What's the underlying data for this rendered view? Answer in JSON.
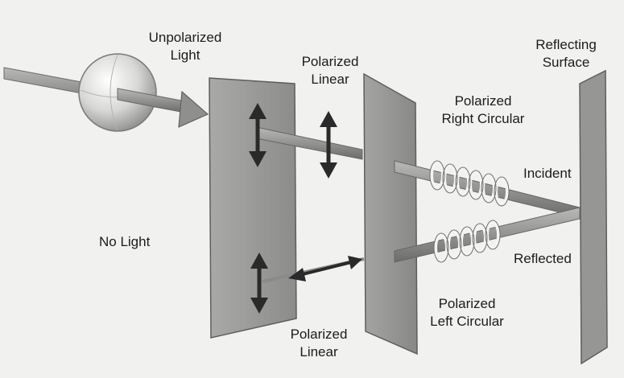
{
  "figure": {
    "subject": "Polarization of light",
    "labels": {
      "unpolarized_light": [
        "Unpolarized",
        "Light"
      ],
      "polarized_linear_top": [
        "Polarized",
        "Linear"
      ],
      "polarized_right_circular": [
        "Polarized",
        "Right Circular"
      ],
      "reflecting_surface": [
        "Reflecting",
        "Surface"
      ],
      "incident": "Incident",
      "no_light": "No Light",
      "reflected": "Reflected",
      "polarized_left_circular": [
        "Polarized",
        "Left Circular"
      ],
      "polarized_linear_bottom": [
        "Polarized",
        "Linear"
      ]
    }
  },
  "colors": {
    "background": "#f1f1ef",
    "panel": "#9a9a98",
    "panel_edge": "#5e5e5c",
    "beam": "#7f7f7d",
    "arrow": "#2a2a2a",
    "coil": "#f4f4f2",
    "sphere": "#cfcfcd"
  }
}
